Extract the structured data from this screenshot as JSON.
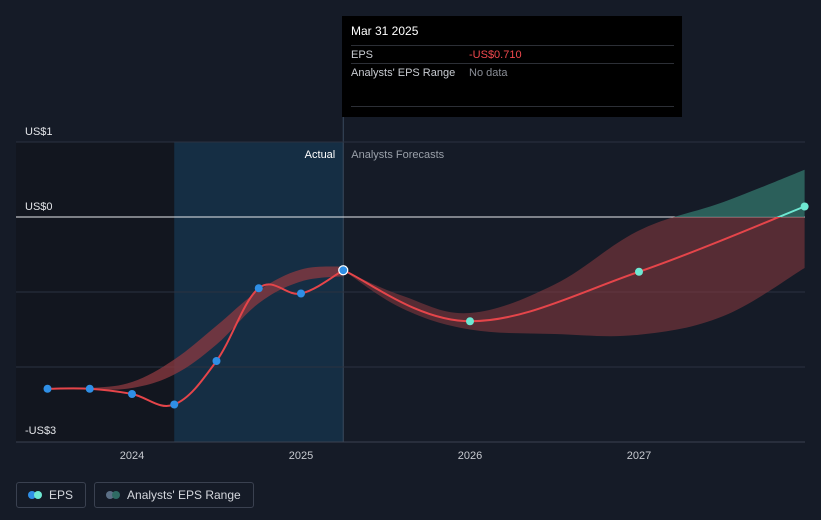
{
  "chart_data": {
    "type": "line",
    "y_ticks": [
      {
        "value": 1,
        "label": "US$1"
      },
      {
        "value": 0,
        "label": "US$0"
      },
      {
        "value": -3,
        "label": "-US$3"
      }
    ],
    "x_ticks": [
      {
        "value": 2024,
        "label": "2024"
      },
      {
        "value": 2025,
        "label": "2025"
      },
      {
        "value": 2026,
        "label": "2026"
      },
      {
        "value": 2027,
        "label": "2027"
      }
    ],
    "ylim": [
      -3,
      1
    ],
    "xlim": [
      2023.35,
      2027.98
    ],
    "split_x": 2025.25,
    "actual_start_x": 2024.25,
    "region_labels": {
      "actual": "Actual",
      "forecast": "Analysts Forecasts"
    },
    "series": [
      {
        "name": "EPS",
        "x": [
          2023.5,
          2023.75,
          2024.0,
          2024.25,
          2024.5,
          2024.75,
          2025.0,
          2025.25
        ],
        "y": [
          -2.29,
          -2.29,
          -2.36,
          -2.5,
          -1.92,
          -0.95,
          -1.02,
          -0.71
        ]
      },
      {
        "name": "EPS forecast",
        "x": [
          2025.25,
          2026.0,
          2027.0,
          2027.98
        ],
        "y": [
          -0.71,
          -1.39,
          -0.73,
          0.14
        ]
      }
    ],
    "range_past": {
      "x": [
        2023.5,
        2023.75,
        2024.0,
        2024.25,
        2024.5,
        2024.75,
        2025.0,
        2025.25
      ],
      "low": [
        -2.29,
        -2.3,
        -2.28,
        -2.1,
        -1.7,
        -1.15,
        -0.86,
        -0.79
      ],
      "high": [
        -2.29,
        -2.28,
        -2.2,
        -1.9,
        -1.45,
        -0.98,
        -0.7,
        -0.66
      ]
    },
    "range_future": {
      "x": [
        2025.25,
        2025.6,
        2026.0,
        2026.5,
        2027.0,
        2027.5,
        2027.98
      ],
      "low": [
        -0.71,
        -1.22,
        -1.5,
        -1.56,
        -1.57,
        -1.32,
        -0.68
      ],
      "high": [
        -0.71,
        -1.05,
        -1.28,
        -0.9,
        -0.18,
        0.2,
        0.63
      ]
    },
    "colors": {
      "eps_line": "#e5454a",
      "eps_dot": "#2f8fe6",
      "forecast_dot": "#6ee8d2",
      "range_red": "#8c3a40",
      "range_teal": "#2f6b64",
      "actual_band": "#15314a"
    }
  },
  "tooltip": {
    "date": "Mar 31 2025",
    "rows": [
      {
        "label": "EPS",
        "value": "-US$0.710"
      },
      {
        "label": "Analysts' EPS Range",
        "value": "No data"
      }
    ]
  },
  "legend": {
    "items": [
      {
        "label": "EPS",
        "colors": [
          "#2f8fe6",
          "#6ee8d2"
        ]
      },
      {
        "label": "Analysts' EPS Range",
        "colors": [
          "#5b6f86",
          "#2f6b64"
        ]
      }
    ]
  }
}
